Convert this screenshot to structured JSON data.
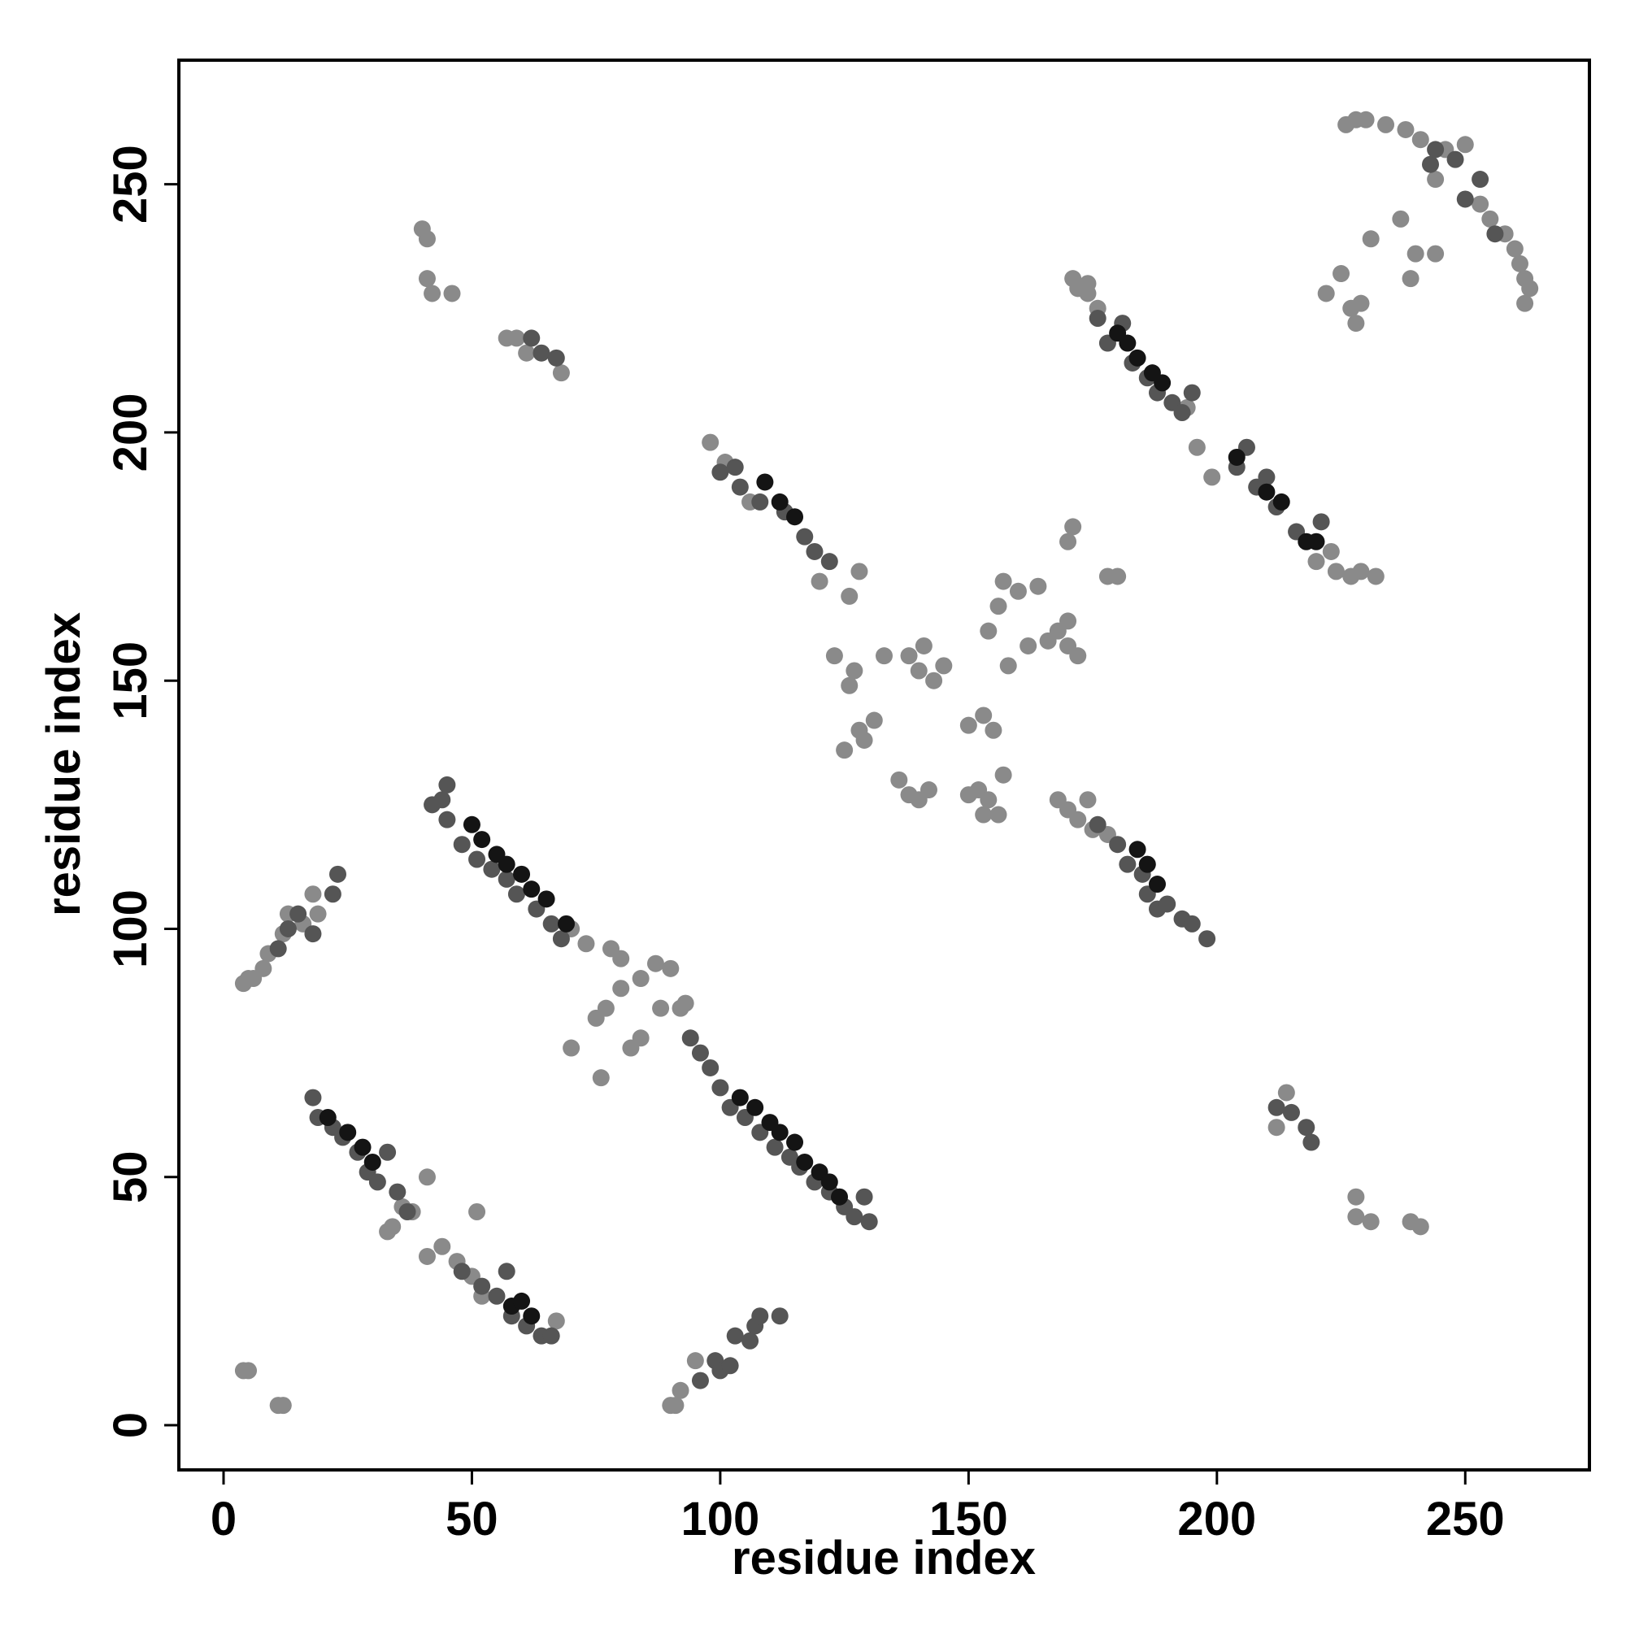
{
  "chart_data": {
    "type": "scatter",
    "xlabel": "residue index",
    "ylabel": "residue index",
    "xlim": [
      -9,
      275
    ],
    "ylim": [
      -9,
      275
    ],
    "xticks": [
      0,
      50,
      100,
      150,
      200,
      250
    ],
    "yticks": [
      0,
      50,
      100,
      150,
      200,
      250
    ],
    "series": [
      {
        "color": "#8a8a8a",
        "x": [
          4,
          5,
          11,
          12,
          4,
          5,
          6,
          8,
          9,
          12,
          13,
          16,
          18,
          19,
          40,
          41,
          41,
          42,
          46,
          57,
          59,
          61,
          68,
          93,
          92,
          90,
          87,
          84,
          80,
          77,
          75,
          70,
          76,
          82,
          84,
          88,
          73,
          78,
          80,
          70,
          90,
          91,
          92,
          95,
          41,
          44,
          47,
          50,
          52,
          36,
          34,
          38,
          41,
          51,
          67,
          33,
          98,
          101,
          106,
          120,
          126,
          128,
          123,
          127,
          126,
          133,
          125,
          128,
          131,
          129,
          136,
          138,
          140,
          142,
          138,
          140,
          143,
          145,
          141,
          150,
          153,
          155,
          152,
          154,
          157,
          150,
          153,
          156,
          154,
          156,
          157,
          160,
          164,
          158,
          162,
          166,
          168,
          170,
          172,
          170,
          170,
          171,
          178,
          180,
          168,
          170,
          172,
          174,
          175,
          178,
          228,
          228,
          231,
          239,
          241,
          222,
          225,
          227,
          229,
          231,
          239,
          228,
          226,
          228,
          230,
          234,
          238,
          241,
          246,
          250,
          253,
          255,
          258,
          260,
          261,
          262,
          263,
          262,
          237,
          240,
          244,
          244,
          171,
          172,
          174,
          176,
          174,
          220,
          224,
          227,
          229,
          232,
          194,
          196,
          199,
          223,
          212,
          214
        ],
        "y": [
          11,
          11,
          4,
          4,
          89,
          90,
          90,
          92,
          95,
          99,
          103,
          101,
          107,
          103,
          241,
          239,
          231,
          228,
          228,
          219,
          219,
          216,
          212,
          85,
          84,
          92,
          93,
          90,
          88,
          84,
          82,
          76,
          70,
          76,
          78,
          84,
          97,
          96,
          94,
          100,
          4,
          4,
          7,
          13,
          34,
          36,
          33,
          30,
          26,
          44,
          40,
          43,
          50,
          43,
          21,
          39,
          198,
          194,
          186,
          170,
          167,
          172,
          155,
          152,
          149,
          155,
          136,
          140,
          142,
          138,
          130,
          127,
          126,
          128,
          155,
          152,
          150,
          153,
          157,
          141,
          143,
          140,
          128,
          126,
          131,
          127,
          123,
          123,
          160,
          165,
          170,
          168,
          169,
          153,
          157,
          158,
          160,
          157,
          155,
          162,
          178,
          181,
          171,
          171,
          126,
          124,
          122,
          126,
          120,
          119,
          46,
          42,
          41,
          41,
          40,
          228,
          232,
          225,
          226,
          239,
          231,
          222,
          262,
          263,
          263,
          262,
          261,
          259,
          257,
          258,
          246,
          243,
          240,
          237,
          234,
          231,
          229,
          226,
          243,
          236,
          236,
          251,
          231,
          229,
          230,
          225,
          228,
          174,
          172,
          171,
          172,
          171,
          205,
          197,
          191,
          176,
          60,
          67
        ]
      },
      {
        "color": "#555555",
        "x": [
          18,
          19,
          22,
          24,
          27,
          29,
          31,
          33,
          35,
          37,
          22,
          23,
          15,
          13,
          11,
          18,
          44,
          45,
          48,
          51,
          54,
          57,
          59,
          63,
          66,
          68,
          45,
          42,
          48,
          52,
          55,
          58,
          61,
          64,
          66,
          57,
          96,
          99,
          100,
          102,
          103,
          106,
          107,
          108,
          112,
          94,
          96,
          98,
          100,
          102,
          105,
          108,
          111,
          114,
          116,
          119,
          122,
          125,
          127,
          129,
          130,
          100,
          103,
          104,
          108,
          113,
          117,
          119,
          122,
          176,
          178,
          181,
          183,
          186,
          188,
          191,
          193,
          195,
          204,
          206,
          208,
          210,
          212,
          216,
          221,
          180,
          182,
          185,
          186,
          188,
          190,
          193,
          195,
          198,
          176,
          62,
          64,
          67,
          212,
          215,
          218,
          219,
          248,
          250,
          253,
          256,
          243,
          244
        ],
        "y": [
          66,
          62,
          60,
          58,
          55,
          51,
          49,
          55,
          47,
          43,
          107,
          111,
          103,
          100,
          96,
          99,
          126,
          122,
          117,
          114,
          112,
          110,
          107,
          104,
          101,
          98,
          129,
          125,
          31,
          28,
          26,
          22,
          20,
          18,
          18,
          31,
          9,
          13,
          11,
          12,
          18,
          17,
          20,
          22,
          22,
          78,
          75,
          72,
          68,
          64,
          62,
          59,
          56,
          54,
          52,
          49,
          47,
          44,
          42,
          46,
          41,
          192,
          193,
          189,
          186,
          184,
          179,
          176,
          174,
          223,
          218,
          222,
          214,
          211,
          208,
          206,
          204,
          208,
          193,
          197,
          189,
          191,
          185,
          180,
          182,
          117,
          113,
          111,
          107,
          104,
          105,
          102,
          101,
          98,
          121,
          219,
          216,
          215,
          64,
          63,
          60,
          57,
          255,
          247,
          251,
          240,
          254,
          257
        ]
      },
      {
        "color": "#141414",
        "x": [
          21,
          25,
          28,
          30,
          50,
          52,
          55,
          57,
          60,
          62,
          65,
          69,
          58,
          60,
          62,
          104,
          107,
          110,
          112,
          115,
          117,
          120,
          122,
          124,
          109,
          112,
          115,
          180,
          182,
          184,
          187,
          189,
          204,
          210,
          213,
          218,
          220,
          184,
          186,
          188
        ],
        "y": [
          62,
          59,
          56,
          53,
          121,
          118,
          115,
          113,
          111,
          108,
          106,
          101,
          24,
          25,
          22,
          66,
          64,
          61,
          59,
          57,
          53,
          51,
          49,
          46,
          190,
          186,
          183,
          220,
          218,
          215,
          212,
          210,
          195,
          188,
          186,
          178,
          178,
          116,
          113,
          109
        ]
      }
    ]
  }
}
